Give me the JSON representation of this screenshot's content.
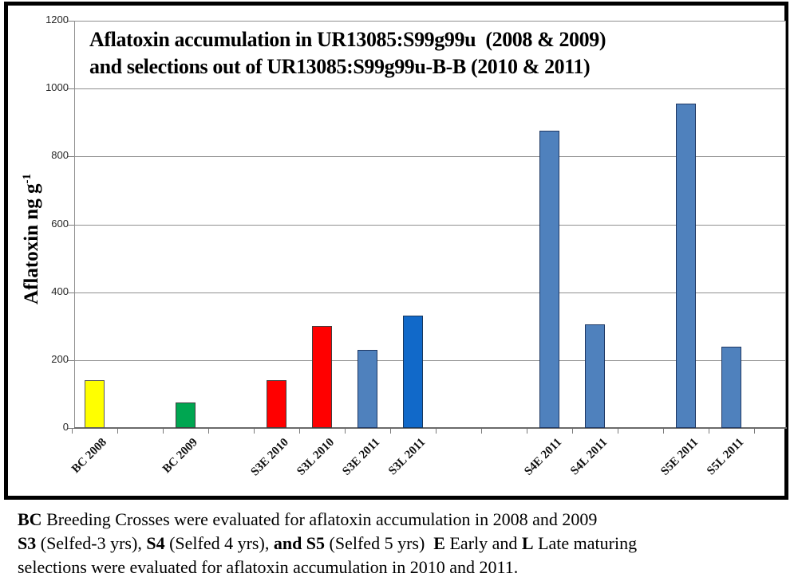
{
  "chart_data": {
    "type": "bar",
    "title_line1": "Aflatoxin accumulation in UR13085:S99g99u  (2008 & 2009)",
    "title_line2": "and selections out of UR13085:S99g99u-B-B (2010 & 2011)",
    "ylabel": "Aflatoxin ng g",
    "ylabel_superscript": "-1",
    "ylim": [
      0,
      1200
    ],
    "yticks": [
      0,
      200,
      400,
      600,
      800,
      1000,
      1200
    ],
    "grid": true,
    "legend": false,
    "categories": [
      "BC 2008",
      "BC 2009",
      "S3E 2010",
      "S3L 2010",
      "S3E 2011",
      "S3L 2011",
      "S4E 2011",
      "S4L 2011",
      "S5E 2011",
      "S5L 2011"
    ],
    "values": [
      140,
      75,
      140,
      300,
      230,
      330,
      875,
      305,
      955,
      240
    ],
    "bar_fill_colors": [
      "#FFFF00",
      "#00A651",
      "#FF0000",
      "#FF0000",
      "#4F81BD",
      "#1169C9",
      "#4F81BD",
      "#4F81BD",
      "#4F81BD",
      "#4F81BD"
    ],
    "bar_border_colors": [
      "#595959",
      "#3F3F3F",
      "#3F3F3F",
      "#3F3F3F",
      "#1F3864",
      "#17375E",
      "#1F3864",
      "#1F3864",
      "#1F3864",
      "#1F3864"
    ],
    "category_slots": [
      0,
      2,
      4,
      5,
      6,
      7,
      10,
      11,
      13,
      14
    ],
    "total_slots": 16
  },
  "caption": {
    "lines": [
      [
        {
          "text": "BC",
          "bold": true
        },
        {
          "text": " Breeding Crosses were evaluated for aflatoxin accumulation in 2008 and 2009",
          "bold": false
        }
      ],
      [
        {
          "text": "S3",
          "bold": true
        },
        {
          "text": " (Selfed-3 yrs), ",
          "bold": false
        },
        {
          "text": "S4",
          "bold": true
        },
        {
          "text": " (Selfed 4 yrs), ",
          "bold": false
        },
        {
          "text": "and S5",
          "bold": true
        },
        {
          "text": " (Selfed 5 yrs)  ",
          "bold": false
        },
        {
          "text": "E",
          "bold": true
        },
        {
          "text": " Early and ",
          "bold": false
        },
        {
          "text": "L",
          "bold": true
        },
        {
          "text": " Late maturing",
          "bold": false
        }
      ],
      [
        {
          "text": "selections were evaluated for aflatoxin accumulation in 2010 and 2011.",
          "bold": false
        }
      ]
    ]
  }
}
